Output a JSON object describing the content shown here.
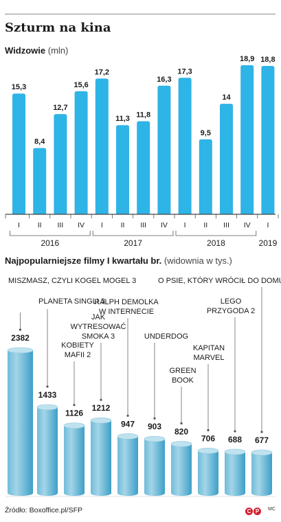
{
  "title": "Szturm na kina",
  "colors": {
    "bar": "#2eb4e6",
    "axis": "#444444",
    "cyl_light": "#a4d5e8",
    "cyl_mid": "#6fbcd9",
    "cyl_dark": "#3d9fc7"
  },
  "source": "Źródło: Boxoffice.pl/SFP",
  "logo": {
    "c": "C",
    "p": "P"
  },
  "initials": "MC",
  "chart1": {
    "label_bold": "Widzowie",
    "label_unit": "(mln)"
  },
  "chart2": {
    "label_bold": "Najpopularniejsze filmy I kwartału br.",
    "label_unit": "(widownia w tys.)"
  },
  "chart_data": [
    {
      "type": "bar",
      "categories": [
        "I",
        "II",
        "III",
        "IV",
        "I",
        "II",
        "III",
        "IV",
        "I",
        "II",
        "III",
        "IV",
        "I"
      ],
      "groups": [
        {
          "label": "2016",
          "count": 4
        },
        {
          "label": "2017",
          "count": 4
        },
        {
          "label": "2018",
          "count": 4
        },
        {
          "label": "2019",
          "count": 1
        }
      ],
      "value_labels": [
        "15,3",
        "8,4",
        "12,7",
        "15,6",
        "17,2",
        "11,3",
        "11,8",
        "16,3",
        "17,3",
        "9,5",
        "14",
        "18,9",
        "18,8"
      ],
      "values": [
        15.3,
        8.4,
        12.7,
        15.6,
        17.2,
        11.3,
        11.8,
        16.3,
        17.3,
        9.5,
        14,
        18.9,
        18.8
      ],
      "title": "Widzowie",
      "ylabel": "(mln)",
      "ylim": [
        0,
        19.5
      ]
    },
    {
      "type": "bar",
      "categories": [
        "MISZMASZ, CZYLI KOGEL MOGEL 3",
        "PLANETA SINGLI 3",
        "KOBIETY MAFII 2",
        "JAK WYTRESOWAĆ SMOKA 3",
        "RALPH DEMOLKA W INTERNECIE",
        "UNDERDOG",
        "GREEN BOOK",
        "KAPITAN MARVEL",
        "LEGO PRZYGODA 2",
        "O PSIE, KTÓRY WRÓCIŁ DO DOMU"
      ],
      "category_lines": [
        [
          "MISZMASZ, CZYLI KOGEL MOGEL 3"
        ],
        [
          "PLANETA SINGLI 3"
        ],
        [
          "KOBIETY",
          "MAFII 2"
        ],
        [
          "JAK",
          "WYTRESOWAĆ",
          "SMOKA 3"
        ],
        [
          "RALPH DEMOLKA",
          "W INTERNECIE"
        ],
        [
          "UNDERDOG"
        ],
        [
          "GREEN",
          "BOOK"
        ],
        [
          "KAPITAN",
          "MARVEL"
        ],
        [
          "LEGO",
          "PRZYGODA 2"
        ],
        [
          "O PSIE, KTÓRY WRÓCIŁ DO DOMU"
        ]
      ],
      "values": [
        2382,
        1433,
        1126,
        1212,
        947,
        903,
        820,
        706,
        688,
        677
      ],
      "title": "Najpopularniejsze filmy I kwartału br.",
      "ylabel": "(widownia w tys.)",
      "ylim": [
        0,
        2600
      ]
    }
  ]
}
